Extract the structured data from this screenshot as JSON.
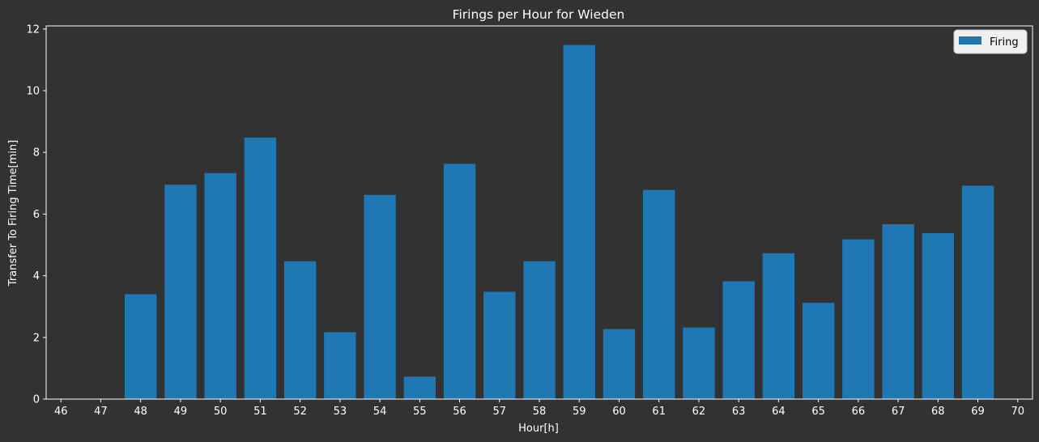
{
  "colors": {
    "background": "#323232",
    "bar": "#1f77b4",
    "text": "#ffffff",
    "axis": "#ffffff",
    "legend_bg": "#f0f0f0",
    "legend_text": "#000000"
  },
  "chart_data": {
    "type": "bar",
    "title": "Firings per Hour for Wieden",
    "xlabel": "Hour[h]",
    "ylabel": "Transfer To Firing Time[min]",
    "xlim": [
      45.63,
      70.37
    ],
    "ylim": [
      0,
      12.1
    ],
    "yticks": [
      0,
      2,
      4,
      6,
      8,
      10,
      12
    ],
    "xticks": [
      46,
      47,
      48,
      49,
      50,
      51,
      52,
      53,
      54,
      55,
      56,
      57,
      58,
      59,
      60,
      61,
      62,
      63,
      64,
      65,
      66,
      67,
      68,
      69,
      70
    ],
    "grid": false,
    "legend_position": "top-right",
    "series": [
      {
        "name": "Firing",
        "x": [
          48,
          49,
          50,
          51,
          52,
          53,
          54,
          55,
          56,
          57,
          58,
          59,
          60,
          61,
          62,
          63,
          64,
          65,
          66,
          67,
          68,
          69
        ],
        "values": [
          3.4,
          6.95,
          7.33,
          8.48,
          4.47,
          2.17,
          6.62,
          0.73,
          7.63,
          3.48,
          4.47,
          11.48,
          2.27,
          6.78,
          2.32,
          3.82,
          4.73,
          3.12,
          5.18,
          5.67,
          5.38,
          6.92
        ]
      }
    ]
  }
}
